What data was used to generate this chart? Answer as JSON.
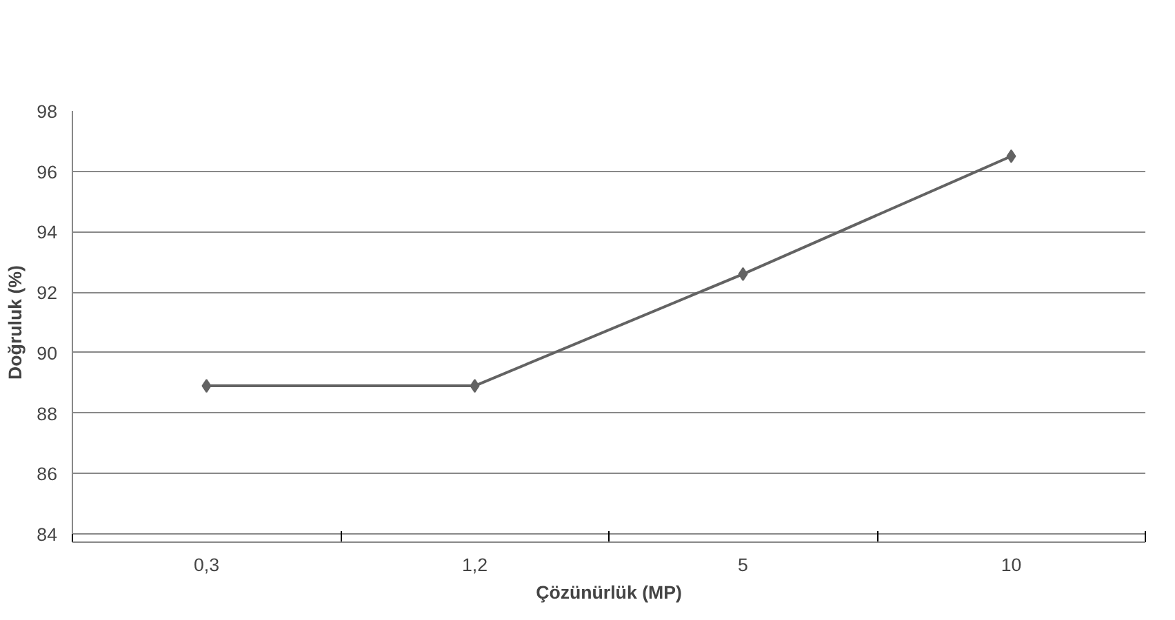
{
  "chart_data": {
    "type": "line",
    "xlabel": "Çözünürlük (MP)",
    "ylabel": "Doğruluk (%)",
    "categories": [
      "0,3",
      "1,2",
      "5",
      "10"
    ],
    "series": [
      {
        "color": "#636363",
        "values": [
          88.9,
          88.9,
          92.6,
          96.5
        ]
      }
    ],
    "ylim": [
      84,
      98
    ],
    "yticks": [
      84,
      86,
      88,
      90,
      92,
      94,
      96,
      98
    ],
    "grid": "y",
    "marker": "diamond",
    "line_style": "solid"
  }
}
